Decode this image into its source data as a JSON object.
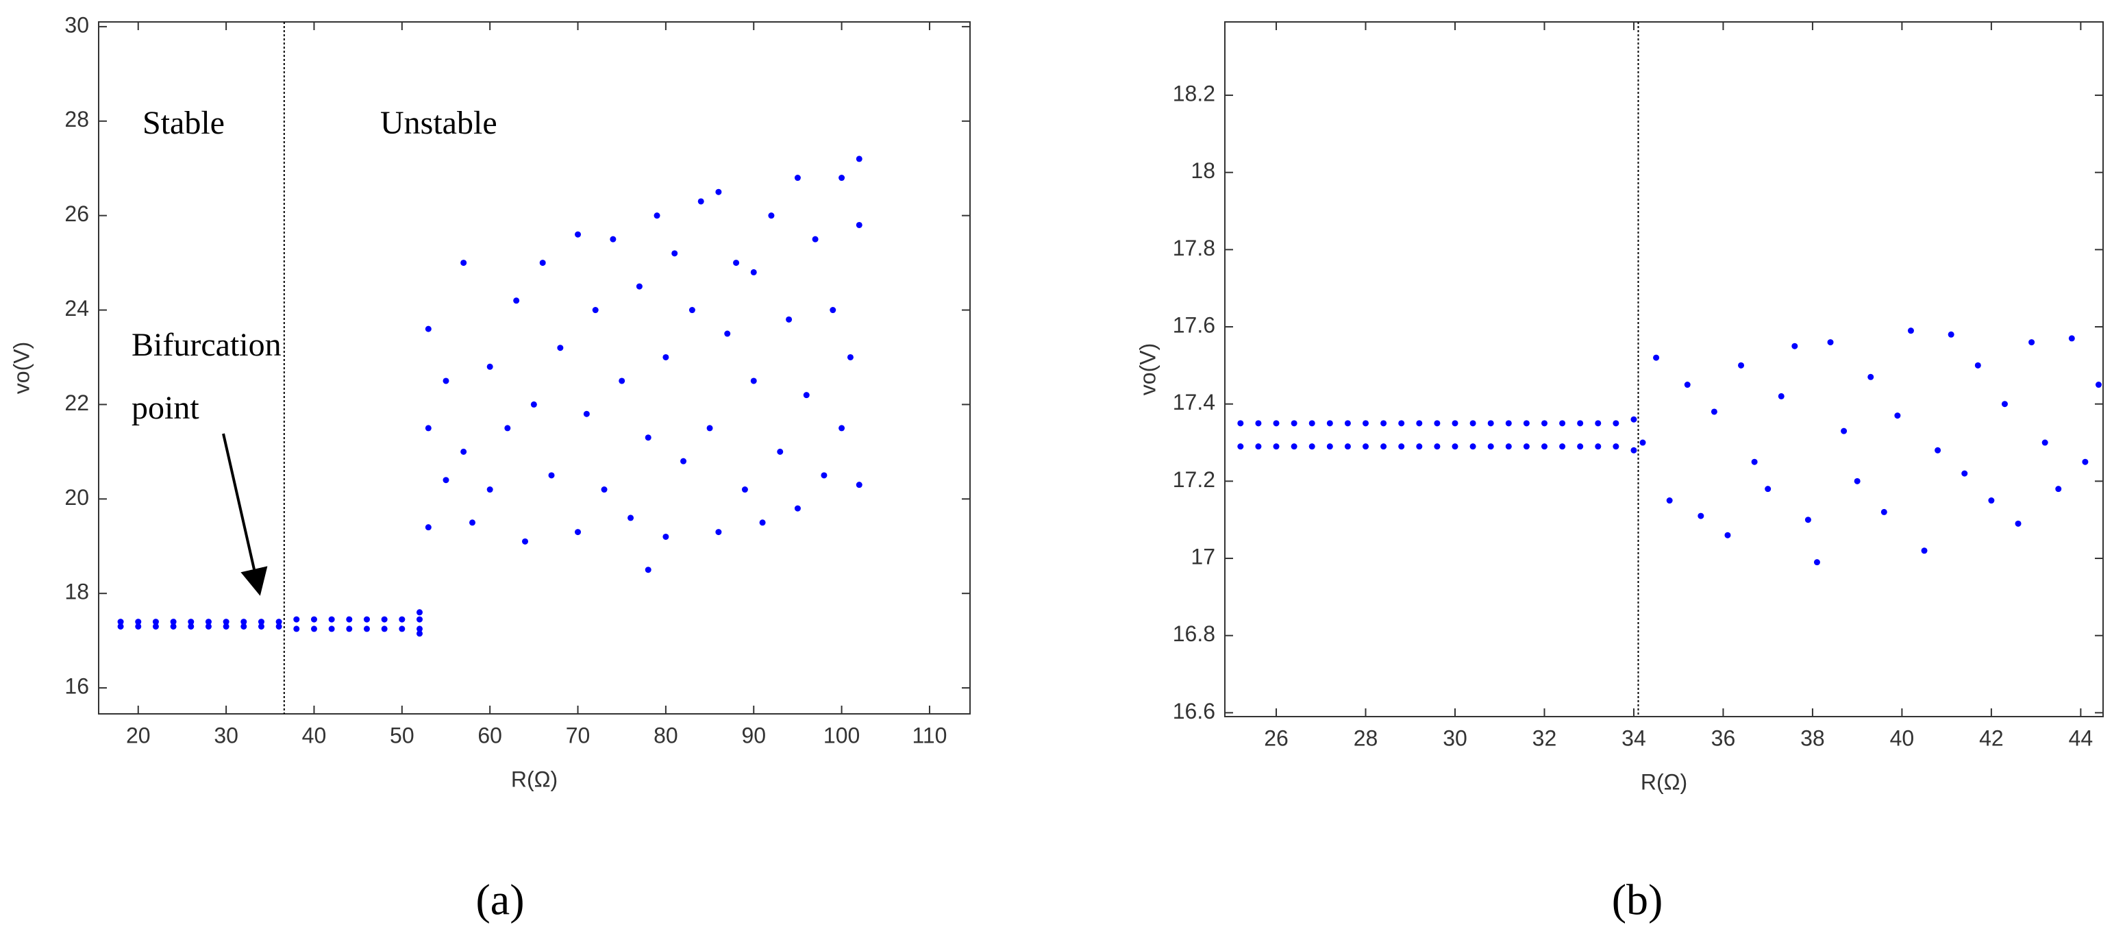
{
  "chart_data": [
    {
      "type": "scatter",
      "panel_label": "(a)",
      "x_label": "R(Ω)",
      "y_label": "vo(V)",
      "xlim": [
        15.5,
        114.6
      ],
      "ylim": [
        15.45,
        30.1
      ],
      "xticks": [
        20,
        30,
        40,
        50,
        60,
        70,
        80,
        90,
        100,
        110
      ],
      "yticks": [
        16,
        18,
        20,
        22,
        24,
        26,
        28,
        30
      ],
      "vline": 36.6,
      "annotations": [
        "Stable",
        "Unstable",
        "Bifurcation",
        "point"
      ],
      "series": [
        {
          "color": "#0000ff",
          "x": [
            18,
            18,
            20,
            20,
            22,
            22,
            24,
            24,
            26,
            26,
            28,
            28,
            30,
            30,
            32,
            32,
            34,
            34,
            36,
            36,
            38,
            38,
            40,
            40,
            42,
            42,
            44,
            44,
            46,
            46,
            48,
            48,
            50,
            50,
            52,
            52,
            52,
            52,
            53,
            53,
            53,
            55,
            55,
            57,
            57,
            58,
            60,
            60,
            62,
            63,
            64,
            65,
            66,
            67,
            68,
            70,
            70,
            71,
            72,
            73,
            74,
            75,
            76,
            77,
            78,
            78,
            79,
            80,
            80,
            81,
            82,
            83,
            84,
            85,
            86,
            86,
            87,
            88,
            89,
            90,
            90,
            91,
            92,
            93,
            94,
            95,
            95,
            96,
            97,
            98,
            99,
            100,
            100,
            101,
            102,
            102,
            102
          ],
          "y": [
            17.3,
            17.4,
            17.3,
            17.4,
            17.3,
            17.4,
            17.3,
            17.4,
            17.3,
            17.4,
            17.3,
            17.4,
            17.3,
            17.4,
            17.3,
            17.4,
            17.3,
            17.4,
            17.3,
            17.4,
            17.25,
            17.45,
            17.25,
            17.45,
            17.25,
            17.45,
            17.25,
            17.45,
            17.25,
            17.45,
            17.25,
            17.45,
            17.25,
            17.45,
            17.25,
            17.45,
            17.6,
            17.15,
            21.5,
            23.6,
            19.4,
            22.5,
            20.4,
            25.0,
            21.0,
            19.5,
            22.8,
            20.2,
            21.5,
            24.2,
            19.1,
            22.0,
            25.0,
            20.5,
            23.2,
            25.6,
            19.3,
            21.8,
            24.0,
            20.2,
            25.5,
            22.5,
            19.6,
            24.5,
            18.5,
            21.3,
            26.0,
            23.0,
            19.2,
            25.2,
            20.8,
            24.0,
            26.3,
            21.5,
            19.3,
            26.5,
            23.5,
            25.0,
            20.2,
            22.5,
            24.8,
            19.5,
            26.0,
            21.0,
            23.8,
            26.8,
            19.8,
            22.2,
            25.5,
            20.5,
            24.0,
            26.8,
            21.5,
            23.0,
            27.2,
            20.3,
            25.8
          ]
        }
      ]
    },
    {
      "type": "scatter",
      "panel_label": "(b)",
      "x_label": "R(Ω)",
      "y_label": "vo(V)",
      "xlim": [
        24.85,
        44.5
      ],
      "ylim": [
        16.59,
        18.39
      ],
      "xticks": [
        26,
        28,
        30,
        32,
        34,
        36,
        38,
        40,
        42,
        44
      ],
      "yticks": [
        16.6,
        16.8,
        17,
        17.2,
        17.4,
        17.6,
        17.8,
        18,
        18.2
      ],
      "vline": 34.1,
      "series": [
        {
          "color": "#0000ff",
          "x": [
            25.2,
            25.2,
            25.6,
            25.6,
            26.0,
            26.0,
            26.4,
            26.4,
            26.8,
            26.8,
            27.2,
            27.2,
            27.6,
            27.6,
            28.0,
            28.0,
            28.4,
            28.4,
            28.8,
            28.8,
            29.2,
            29.2,
            29.6,
            29.6,
            30.0,
            30.0,
            30.4,
            30.4,
            30.8,
            30.8,
            31.2,
            31.2,
            31.6,
            31.6,
            32.0,
            32.0,
            32.4,
            32.4,
            32.8,
            32.8,
            33.2,
            33.2,
            33.6,
            33.6,
            34.0,
            34.0,
            34.2,
            34.5,
            34.8,
            35.2,
            35.5,
            35.8,
            36.1,
            36.4,
            36.7,
            37.0,
            37.3,
            37.6,
            37.9,
            38.1,
            38.4,
            38.7,
            39.0,
            39.3,
            39.6,
            39.9,
            40.2,
            40.5,
            40.8,
            41.1,
            41.4,
            41.7,
            42.0,
            42.3,
            42.6,
            42.9,
            43.2,
            43.5,
            43.8,
            44.1,
            44.4
          ],
          "y": [
            17.29,
            17.35,
            17.29,
            17.35,
            17.29,
            17.35,
            17.29,
            17.35,
            17.29,
            17.35,
            17.29,
            17.35,
            17.29,
            17.35,
            17.29,
            17.35,
            17.29,
            17.35,
            17.29,
            17.35,
            17.29,
            17.35,
            17.29,
            17.35,
            17.29,
            17.35,
            17.29,
            17.35,
            17.29,
            17.35,
            17.29,
            17.35,
            17.29,
            17.35,
            17.29,
            17.35,
            17.29,
            17.35,
            17.29,
            17.35,
            17.29,
            17.35,
            17.29,
            17.35,
            17.28,
            17.36,
            17.3,
            17.52,
            17.15,
            17.45,
            17.11,
            17.38,
            17.06,
            17.5,
            17.25,
            17.18,
            17.42,
            17.55,
            17.1,
            16.99,
            17.56,
            17.33,
            17.2,
            17.47,
            17.12,
            17.37,
            17.59,
            17.02,
            17.28,
            17.58,
            17.22,
            17.5,
            17.15,
            17.4,
            17.09,
            17.56,
            17.3,
            17.18,
            17.57,
            17.25,
            17.45
          ]
        }
      ]
    }
  ]
}
